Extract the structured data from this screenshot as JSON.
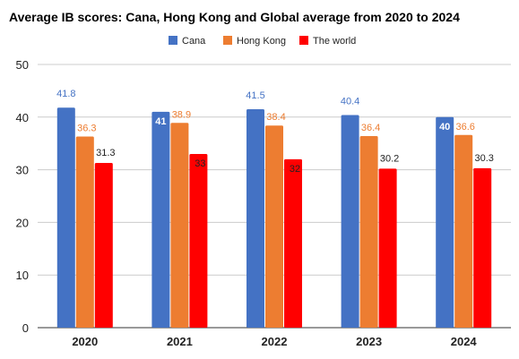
{
  "chart_data": {
    "type": "bar",
    "title": "Average IB scores: Cana, Hong Kong and Global average from 2020 to 2024",
    "xlabel": "",
    "ylabel": "",
    "categories": [
      "2020",
      "2021",
      "2022",
      "2023",
      "2024"
    ],
    "series": [
      {
        "name": "Cana",
        "color": "#4472C4",
        "values": [
          41.8,
          41,
          41.5,
          40.4,
          40
        ],
        "labels": [
          "41.8",
          "41",
          "41.5",
          "40.4",
          "40"
        ]
      },
      {
        "name": "Hong Kong",
        "color": "#ED7D31",
        "values": [
          36.3,
          38.9,
          38.4,
          36.4,
          36.6
        ],
        "labels": [
          "36.3",
          "38.9",
          "38.4",
          "36.4",
          "36.6"
        ]
      },
      {
        "name": "The world",
        "color": "#FF0000",
        "values": [
          31.3,
          33,
          32,
          30.2,
          30.3
        ],
        "labels": [
          "31.3",
          "33",
          "32",
          "30.2",
          "30.3"
        ]
      }
    ],
    "ylim": [
      0,
      50
    ],
    "yticks": [
      "0",
      "10",
      "20",
      "30",
      "40",
      "50"
    ],
    "grid": true,
    "legend_position": "top-center"
  }
}
